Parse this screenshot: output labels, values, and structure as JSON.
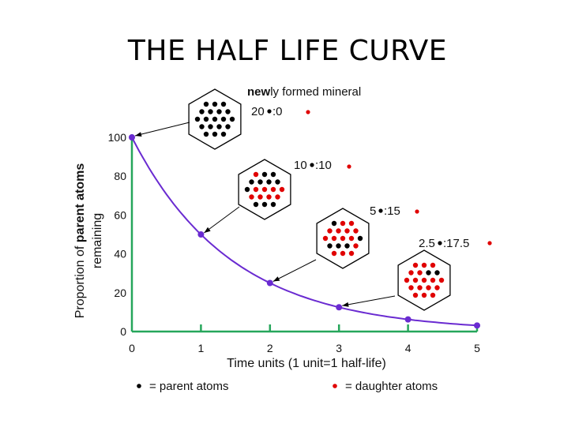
{
  "slide": {
    "title": "THE HALF LIFE CURVE"
  },
  "chart_data": {
    "type": "line",
    "xlabel": "Time units (1 unit=1 half-life)",
    "ylabel_prefix": "Proportion of ",
    "ylabel_bold": "parent atoms",
    "ylabel_line2": "remaining",
    "xlim": [
      0,
      5
    ],
    "ylim": [
      0,
      100
    ],
    "x_ticks": [
      "0",
      "1",
      "2",
      "3",
      "4",
      "5"
    ],
    "y_ticks": [
      "0",
      "20",
      "40",
      "60",
      "80",
      "100"
    ],
    "grid": false,
    "series": [
      {
        "x": [
          0,
          1,
          2,
          3,
          4,
          5
        ],
        "values": [
          100,
          50,
          25,
          12.5,
          6.25,
          3.125
        ]
      }
    ],
    "colors": {
      "curve": "#6a2bd1",
      "axis": "#26a65b",
      "parent": "#000000",
      "daughter": "#e00000",
      "leader": "#000000"
    },
    "annotations": [
      {
        "text_bold": "new",
        "text": "ly formed mineral"
      },
      {
        "parent": "20",
        "daughter": ":0",
        "parent_count": 20,
        "daughter_count": 0
      },
      {
        "parent": "10",
        "daughter": ":10",
        "parent_count": 10,
        "daughter_count": 10
      },
      {
        "parent": "5",
        "daughter": ":15",
        "parent_count": 5,
        "daughter_count": 15
      },
      {
        "parent": "2.5",
        "daughter": ":17.5",
        "parent_count": 2.5,
        "daughter_count": 17.5
      }
    ],
    "legend": {
      "placement": "bottom",
      "items": [
        {
          "label": "= parent atoms"
        },
        {
          "label": "= daughter atoms"
        }
      ]
    }
  }
}
